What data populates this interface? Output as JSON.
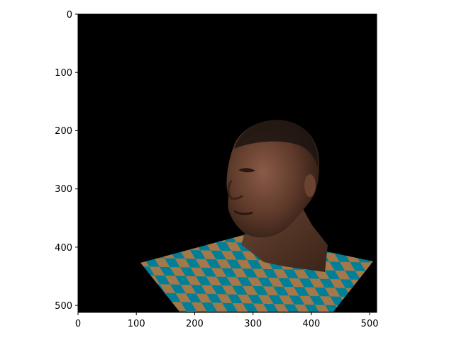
{
  "image": {
    "description_icon": "rendered-3d-head-icon",
    "background": "#000000",
    "checker_colors": [
      "#007f96",
      "#a5784a"
    ],
    "skin_tone": "#5e3a2a"
  },
  "axes": {
    "x_range": [
      0,
      512
    ],
    "y_range": [
      0,
      512
    ],
    "x_ticks": [
      "0",
      "100",
      "200",
      "300",
      "400",
      "500"
    ],
    "y_ticks": [
      "0",
      "100",
      "200",
      "300",
      "400",
      "500"
    ]
  }
}
